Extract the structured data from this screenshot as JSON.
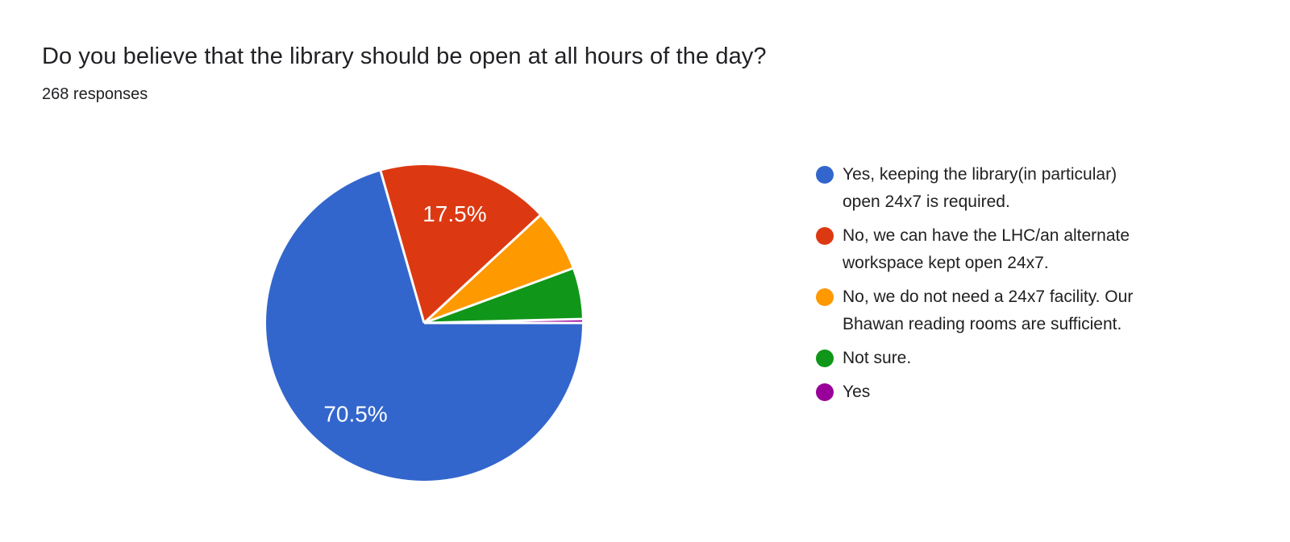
{
  "header": {
    "title": "Do you believe that the library should be open at all hours of the day?",
    "subtitle": "268 responses"
  },
  "chart_data": {
    "type": "pie",
    "title": "Do you believe that the library should be open at all hours of the day?",
    "subtitle": "268 responses",
    "total_responses": 268,
    "start_angle": "3-oclock",
    "direction": "clockwise",
    "legend_position": "right",
    "background": "#ffffff",
    "separator_color": "#ffffff",
    "slice_label_color": "#ffffff",
    "slices": [
      {
        "label": "Yes, keeping the library(in particular) open 24x7 is required.",
        "legend_lines": [
          "Yes, keeping the library(in particular)",
          "open 24x7 is required."
        ],
        "percent": 70.5,
        "display_label": "70.5%",
        "color": "#3366CC"
      },
      {
        "label": "No, we can have the LHC/an alternate workspace kept open 24x7.",
        "legend_lines": [
          "No, we can have the LHC/an alternate",
          "workspace kept open 24x7."
        ],
        "percent": 17.5,
        "display_label": "17.5%",
        "color": "#DC3912"
      },
      {
        "label": "No, we do not need a 24x7 facility. Our Bhawan reading rooms are sufficient.",
        "legend_lines": [
          "No, we do not need a 24x7 facility. Our",
          "Bhawan reading rooms are sufficient."
        ],
        "percent": 6.3,
        "display_label": "",
        "color": "#FF9900"
      },
      {
        "label": "Not sure.",
        "legend_lines": [
          "Not sure."
        ],
        "percent": 5.2,
        "display_label": "",
        "color": "#109618"
      },
      {
        "label": "Yes",
        "legend_lines": [
          "Yes"
        ],
        "percent": 0.4,
        "display_label": "",
        "color": "#990099"
      }
    ]
  }
}
